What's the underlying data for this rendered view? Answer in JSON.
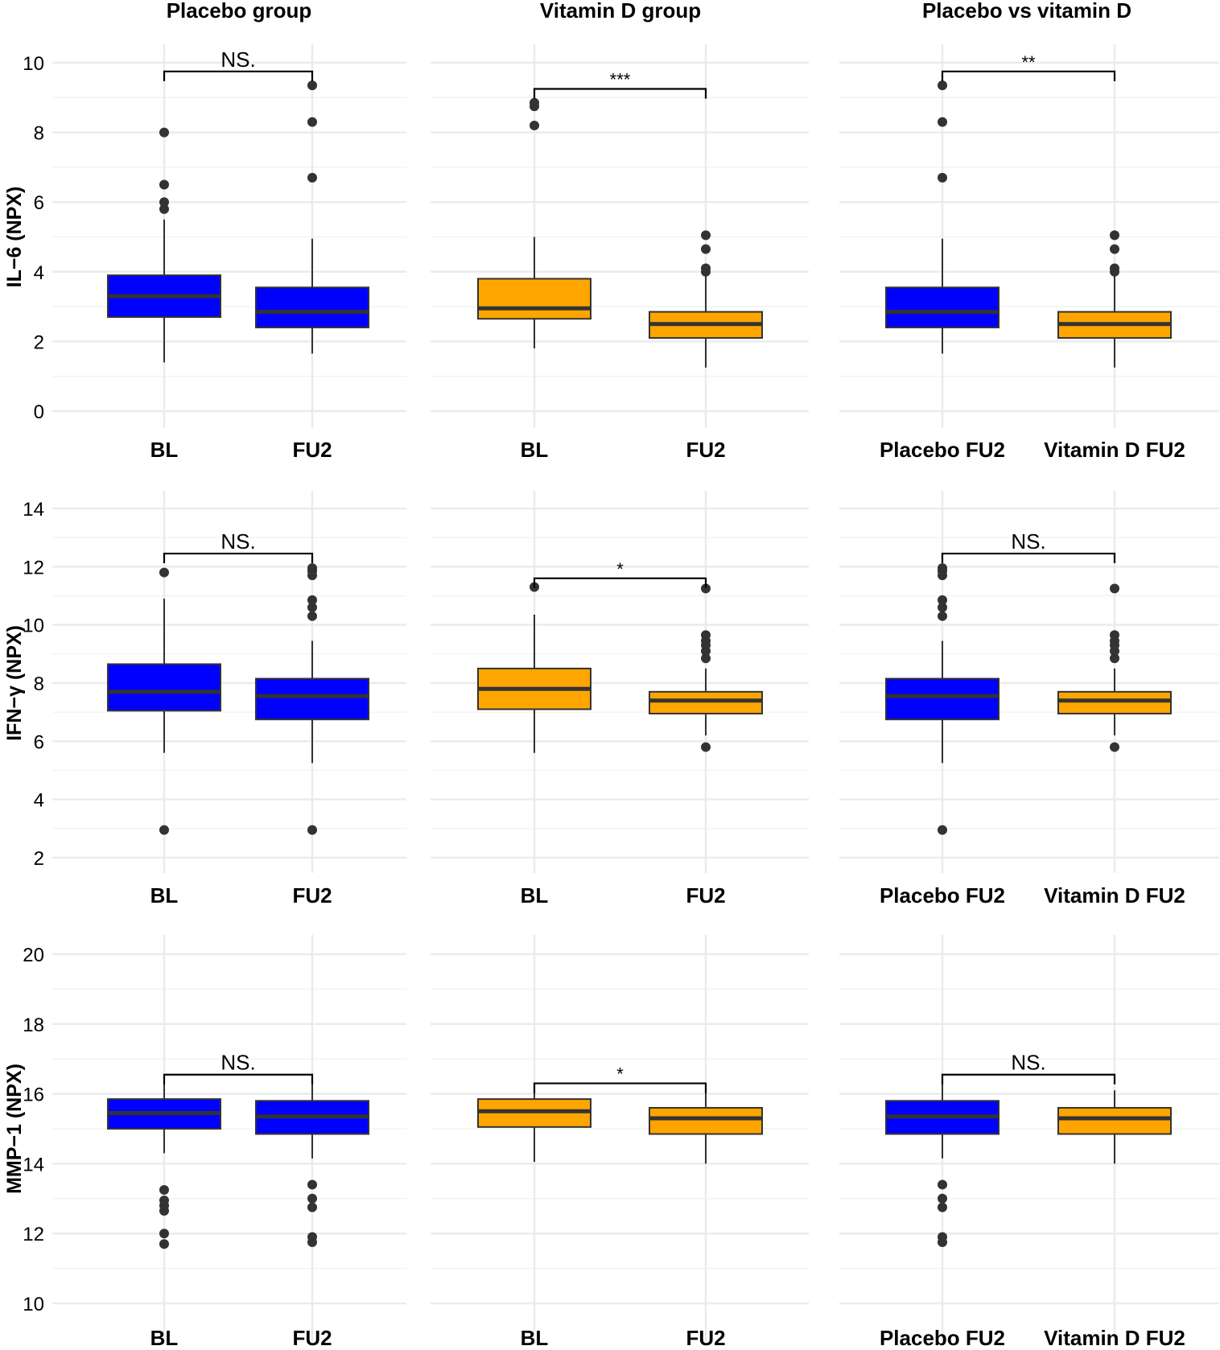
{
  "colors": {
    "placebo": "#0000ff",
    "vitamin_d": "#ffa500",
    "box_outline": "#333333",
    "outlier": "#333333",
    "grid": "#ebebeb",
    "bracket": "#000000"
  },
  "column_titles": [
    "Placebo group",
    "Vitamin D group",
    "Placebo vs vitamin D"
  ],
  "row_labels": [
    "IL−6 (NPX)",
    "IFN−γ (NPX)",
    "MMP−1 (NPX)"
  ],
  "chart_data": [
    {
      "type": "boxplot",
      "row": 0,
      "column": 0,
      "title": "Placebo group",
      "ylabel": "IL−6 (NPX)",
      "ylim": [
        0,
        10
      ],
      "yticks": [
        "0",
        "2",
        "4",
        "6",
        "8",
        "10"
      ],
      "categories": [
        "BL",
        "FU2"
      ],
      "boxes": [
        {
          "group": "placebo",
          "q1": 2.7,
          "median": 3.3,
          "q3": 3.9,
          "lower": 1.4,
          "upper": 5.5,
          "outliers": [
            5.8,
            6.0,
            6.5,
            8.0
          ]
        },
        {
          "group": "placebo",
          "q1": 2.4,
          "median": 2.85,
          "q3": 3.55,
          "lower": 1.65,
          "upper": 4.95,
          "outliers": [
            6.7,
            8.3,
            9.35
          ]
        }
      ],
      "significance": {
        "label": "NS.",
        "y": 9.75
      }
    },
    {
      "type": "boxplot",
      "row": 0,
      "column": 1,
      "title": "Vitamin D group",
      "ylabel": "IL−6 (NPX)",
      "ylim": [
        0,
        10
      ],
      "yticks": [
        "0",
        "2",
        "4",
        "6",
        "8",
        "10"
      ],
      "categories": [
        "BL",
        "FU2"
      ],
      "boxes": [
        {
          "group": "vitamin_d",
          "q1": 2.65,
          "median": 2.95,
          "q3": 3.8,
          "lower": 1.8,
          "upper": 5.0,
          "outliers": [
            8.2,
            8.75,
            8.85
          ]
        },
        {
          "group": "vitamin_d",
          "q1": 2.1,
          "median": 2.5,
          "q3": 2.85,
          "lower": 1.25,
          "upper": 3.9,
          "outliers": [
            4.0,
            4.1,
            4.65,
            5.05
          ]
        }
      ],
      "significance": {
        "label": "***",
        "y": 9.25
      }
    },
    {
      "type": "boxplot",
      "row": 0,
      "column": 2,
      "title": "Placebo vs vitamin D",
      "ylabel": "IL−6 (NPX)",
      "ylim": [
        0,
        10
      ],
      "yticks": [
        "0",
        "2",
        "4",
        "6",
        "8",
        "10"
      ],
      "categories": [
        "Placebo FU2",
        "Vitamin D FU2"
      ],
      "boxes": [
        {
          "group": "placebo",
          "q1": 2.4,
          "median": 2.85,
          "q3": 3.55,
          "lower": 1.65,
          "upper": 4.95,
          "outliers": [
            6.7,
            8.3,
            9.35
          ]
        },
        {
          "group": "vitamin_d",
          "q1": 2.1,
          "median": 2.5,
          "q3": 2.85,
          "lower": 1.25,
          "upper": 3.9,
          "outliers": [
            4.0,
            4.1,
            4.65,
            5.05
          ]
        }
      ],
      "significance": {
        "label": "**",
        "y": 9.75
      }
    },
    {
      "type": "boxplot",
      "row": 1,
      "column": 0,
      "title": "Placebo group",
      "ylabel": "IFN−γ (NPX)",
      "ylim": [
        2,
        14
      ],
      "yticks": [
        "2",
        "4",
        "6",
        "8",
        "10",
        "12",
        "14"
      ],
      "categories": [
        "BL",
        "FU2"
      ],
      "boxes": [
        {
          "group": "placebo",
          "q1": 7.05,
          "median": 7.7,
          "q3": 8.65,
          "lower": 5.6,
          "upper": 10.9,
          "outliers": [
            2.95,
            11.8
          ]
        },
        {
          "group": "placebo",
          "q1": 6.75,
          "median": 7.55,
          "q3": 8.15,
          "lower": 5.25,
          "upper": 9.45,
          "outliers": [
            2.95,
            10.3,
            10.6,
            10.85,
            11.7,
            11.85,
            11.95
          ]
        }
      ],
      "significance": {
        "label": "NS.",
        "y": 12.45
      }
    },
    {
      "type": "boxplot",
      "row": 1,
      "column": 1,
      "title": "Vitamin D group",
      "ylabel": "IFN−γ (NPX)",
      "ylim": [
        2,
        14
      ],
      "yticks": [
        "2",
        "4",
        "6",
        "8",
        "10",
        "12",
        "14"
      ],
      "categories": [
        "BL",
        "FU2"
      ],
      "boxes": [
        {
          "group": "vitamin_d",
          "q1": 7.1,
          "median": 7.8,
          "q3": 8.5,
          "lower": 5.6,
          "upper": 10.35,
          "outliers": [
            11.3
          ]
        },
        {
          "group": "vitamin_d",
          "q1": 6.95,
          "median": 7.4,
          "q3": 7.7,
          "lower": 6.2,
          "upper": 8.5,
          "outliers": [
            5.8,
            8.85,
            9.1,
            9.3,
            9.45,
            9.65,
            11.25
          ]
        }
      ],
      "significance": {
        "label": "*",
        "y": 11.6
      }
    },
    {
      "type": "boxplot",
      "row": 1,
      "column": 2,
      "title": "Placebo vs vitamin D",
      "ylabel": "IFN−γ (NPX)",
      "ylim": [
        2,
        14
      ],
      "yticks": [
        "2",
        "4",
        "6",
        "8",
        "10",
        "12",
        "14"
      ],
      "categories": [
        "Placebo FU2",
        "Vitamin D FU2"
      ],
      "boxes": [
        {
          "group": "placebo",
          "q1": 6.75,
          "median": 7.55,
          "q3": 8.15,
          "lower": 5.25,
          "upper": 9.45,
          "outliers": [
            2.95,
            10.3,
            10.6,
            10.85,
            11.7,
            11.85,
            11.95
          ]
        },
        {
          "group": "vitamin_d",
          "q1": 6.95,
          "median": 7.4,
          "q3": 7.7,
          "lower": 6.2,
          "upper": 8.5,
          "outliers": [
            5.8,
            8.85,
            9.1,
            9.3,
            9.45,
            9.65,
            11.25
          ]
        }
      ],
      "significance": {
        "label": "NS.",
        "y": 12.45
      }
    },
    {
      "type": "boxplot",
      "row": 2,
      "column": 0,
      "title": "Placebo group",
      "ylabel": "MMP−1 (NPX)",
      "ylim": [
        10,
        20
      ],
      "yticks": [
        "10",
        "12",
        "14",
        "16",
        "18",
        "20"
      ],
      "categories": [
        "BL",
        "FU2"
      ],
      "boxes": [
        {
          "group": "placebo",
          "q1": 15.0,
          "median": 15.45,
          "q3": 15.85,
          "lower": 14.3,
          "upper": 16.35,
          "outliers": [
            11.7,
            12.0,
            12.65,
            12.8,
            12.95,
            13.25
          ]
        },
        {
          "group": "placebo",
          "q1": 14.85,
          "median": 15.35,
          "q3": 15.8,
          "lower": 14.15,
          "upper": 16.35,
          "outliers": [
            11.75,
            11.9,
            12.75,
            13.0,
            13.4
          ]
        }
      ],
      "significance": {
        "label": "NS.",
        "y": 16.55
      }
    },
    {
      "type": "boxplot",
      "row": 2,
      "column": 1,
      "title": "Vitamin D group",
      "ylabel": "MMP−1 (NPX)",
      "ylim": [
        10,
        20
      ],
      "yticks": [
        "10",
        "12",
        "14",
        "16",
        "18",
        "20"
      ],
      "categories": [
        "BL",
        "FU2"
      ],
      "boxes": [
        {
          "group": "vitamin_d",
          "q1": 15.05,
          "median": 15.5,
          "q3": 15.85,
          "lower": 14.05,
          "upper": 16.3,
          "outliers": []
        },
        {
          "group": "vitamin_d",
          "q1": 14.85,
          "median": 15.3,
          "q3": 15.6,
          "lower": 14.0,
          "upper": 16.1,
          "outliers": []
        }
      ],
      "significance": {
        "label": "*",
        "y": 16.3
      }
    },
    {
      "type": "boxplot",
      "row": 2,
      "column": 2,
      "title": "Placebo vs vitamin D",
      "ylabel": "MMP−1 (NPX)",
      "ylim": [
        10,
        20
      ],
      "yticks": [
        "10",
        "12",
        "14",
        "16",
        "18",
        "20"
      ],
      "categories": [
        "Placebo FU2",
        "Vitamin D FU2"
      ],
      "boxes": [
        {
          "group": "placebo",
          "q1": 14.85,
          "median": 15.35,
          "q3": 15.8,
          "lower": 14.15,
          "upper": 16.35,
          "outliers": [
            11.75,
            11.9,
            12.75,
            13.0,
            13.4
          ]
        },
        {
          "group": "vitamin_d",
          "q1": 14.85,
          "median": 15.3,
          "q3": 15.6,
          "lower": 14.0,
          "upper": 16.1,
          "outliers": []
        }
      ],
      "significance": {
        "label": "NS.",
        "y": 16.55
      }
    }
  ]
}
